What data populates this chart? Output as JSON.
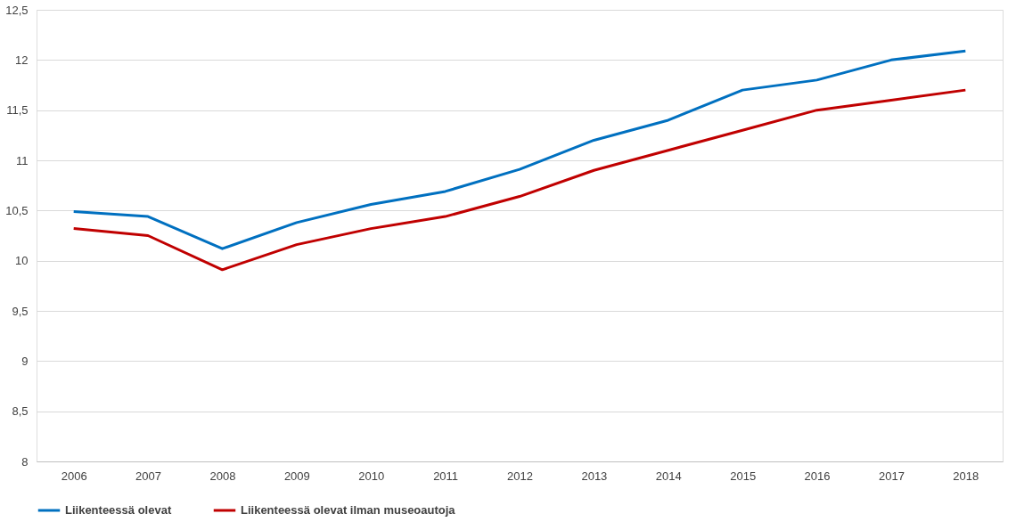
{
  "chart_data": {
    "type": "line",
    "categories": [
      "2006",
      "2007",
      "2008",
      "2009",
      "2010",
      "2011",
      "2012",
      "2013",
      "2014",
      "2015",
      "2016",
      "2017",
      "2018"
    ],
    "series": [
      {
        "name": "Liikenteessä olevat",
        "color": "#0070c0",
        "values": [
          10.49,
          10.44,
          10.12,
          10.38,
          10.56,
          10.69,
          10.91,
          11.2,
          11.4,
          11.7,
          11.8,
          12.0,
          12.09
        ]
      },
      {
        "name": "Liikenteessä olevat ilman museoautoja",
        "color": "#c00000",
        "values": [
          10.32,
          10.25,
          9.91,
          10.16,
          10.32,
          10.44,
          10.64,
          10.9,
          11.1,
          11.3,
          11.5,
          11.6,
          11.7
        ]
      }
    ],
    "ylim": [
      8,
      12.5
    ],
    "yticks": [
      8,
      {
        "value": 8.5,
        "label": "8,5"
      },
      9,
      {
        "value": 9.5,
        "label": "9,5"
      },
      10,
      {
        "value": 10.5,
        "label": "10,5"
      },
      11,
      {
        "value": 11.5,
        "label": "11,5"
      },
      12,
      {
        "value": 12.5,
        "label": "12,5"
      }
    ],
    "grid": "y",
    "legend": "bottom",
    "marker": "none",
    "line_style": "solid"
  }
}
